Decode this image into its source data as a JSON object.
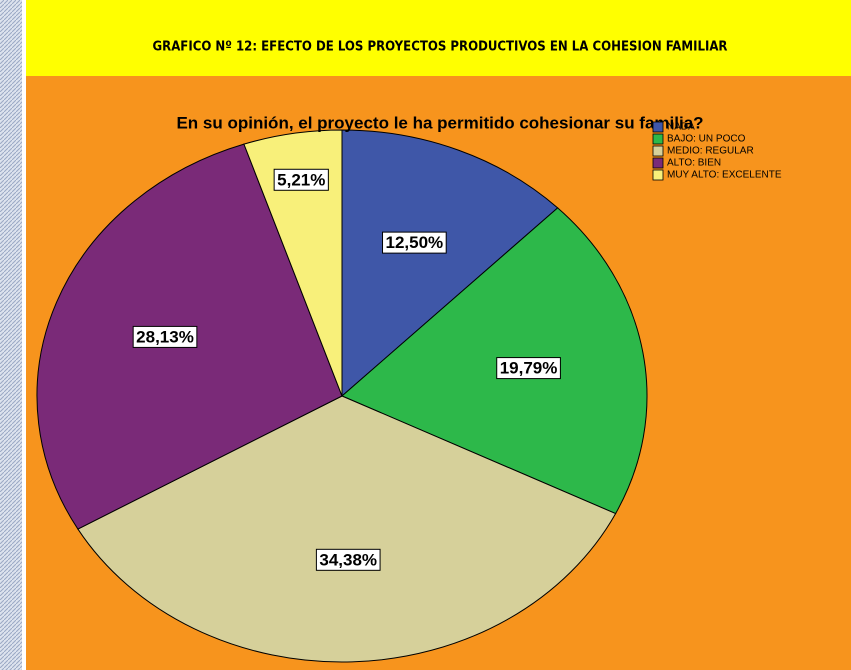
{
  "chart_data": {
    "type": "pie",
    "title": "GRAFICO Nº 12: EFECTO DE LOS PROYECTOS PRODUCTIVOS EN LA COHESION FAMILIAR",
    "subtitle": "En su opinión, el proyecto le ha permitido cohesionar su familia?",
    "categories": [
      "NADA",
      "BAJO: UN POCO",
      "MEDIO: REGULAR",
      "ALTO: BIEN",
      "MUY ALTO: EXCELENTE"
    ],
    "values": [
      12.5,
      19.79,
      34.38,
      28.13,
      5.21
    ],
    "value_labels": [
      "12,50%",
      "19,79%",
      "34,38%",
      "28,13%",
      "5,21%"
    ],
    "colors": [
      "#3f57a8",
      "#2db84a",
      "#d6d09a",
      "#7a2a78",
      "#f8f07a"
    ],
    "legend": "upper right"
  }
}
